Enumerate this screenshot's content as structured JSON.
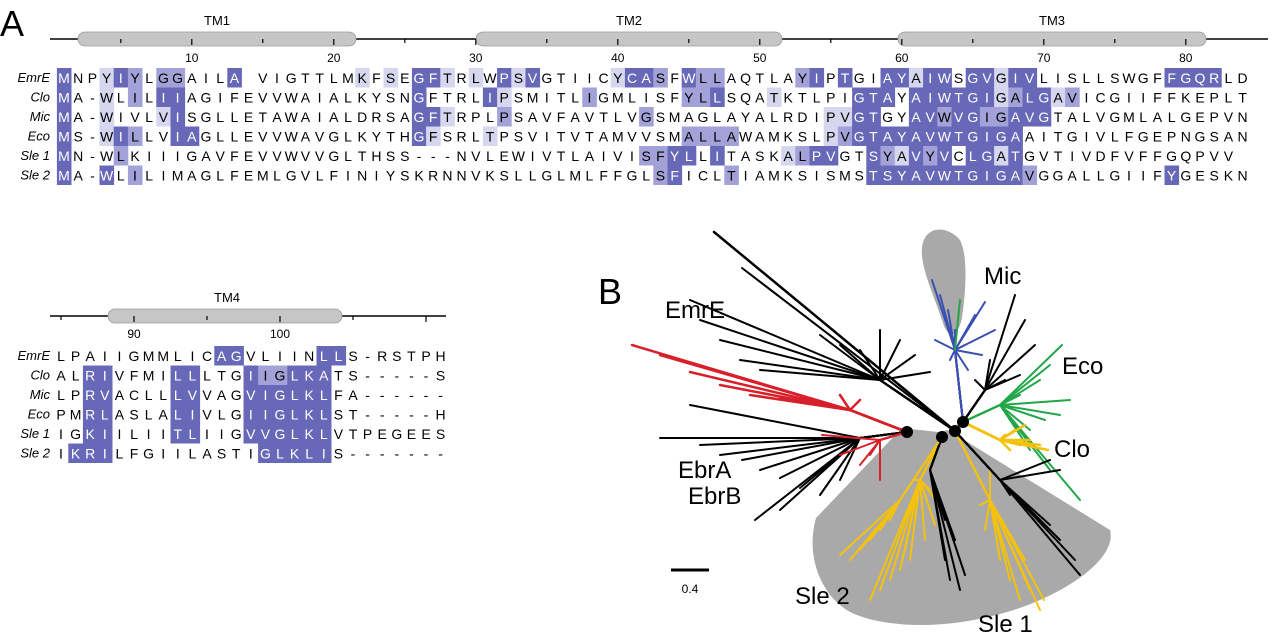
{
  "panel_a": {
    "label": "A",
    "block1": {
      "tm_labels": [
        "TM1",
        "TM2",
        "TM3"
      ],
      "ticks": [
        "10",
        "20",
        "30",
        "40",
        "50",
        "60",
        "70",
        "80"
      ],
      "rows": [
        {
          "name": "EmrE",
          "seq": "MNPYIYLGGAILAEVIGTTLMKFSEGFTRLWPSVGTIICYCASFWLLAQTLAYIPTGIAYAIWSGVGIVLISLLSWGFFGQRLD",
          "shade": "3001320220003400000001010331010313000001332032200000230300331330331330000000003333000"
        },
        {
          "name": "Clo",
          "seq": "MA-WLILIIAGIFEVVWAIALKYSNGFTRLIPSMITLIGMLISFYLLSQATKTLPIGTAYAIWTGIGALGAVICGIIFFKEPLT",
          "shade": "3001020330000000000000000300003100000200000022300010000033303333331233120000000000000"
        },
        {
          "name": "Mic",
          "seq": "MA-WIVLVISGLLETAWAIALDRSAGFTRPLPSAVFAVTLVGSMAGLAYALRDIPVGTGYAVWVGIGAVGTALVGMLALGEPVN",
          "shade": "3001000130000000000000000331000200000000020000000000001133003323322333000000000000000"
        },
        {
          "name": "Eco",
          "seq": "MS-WILLVIAGLLEVVWAVGLKYTHGFSRLTPSVITVTAMVVSMALLAWAMKSLPVGTAYAVWTGIGAAITGIVLFGEPNGSAN",
          "shade": "3001320033000000000000000310001000000000000022220000001233333333333300000000000000000"
        },
        {
          "name": "Sle 1",
          "seq": "MN-WLKIIIGAVFEVVWVVGLTHSS---NVLEWIVTLAIVISFYLLITASKALPVGTSYAVYVCLGATGVTIVDFVFFGQPVV",
          "shade": "3000200000000000000000000000000000000000022330300001233003213230331300000000000000"
        },
        {
          "name": "Sle 2",
          "seq": "MA-WLILIMAGLFEMLGVLFINIYSKRNNVKSLLGLMLFFGLSFICLTIAMKSISMSTSYAVWTGIGAVGGALLGIIFYGESKN",
          "shade": "3003020000000000000000000000000000000000002300020000000003333333333320000000003000000"
        }
      ],
      "highlight_col": 14
    },
    "block2": {
      "tm_labels": [
        "TM4"
      ],
      "ticks": [
        "90",
        "100"
      ],
      "rows": [
        {
          "name": "EmrE",
          "seq": "LPAIIGMMLICAGVLIINLLS-RSTPH",
          "shade": "000000000003300000330000000"
        },
        {
          "name": "Clo",
          "seq": "ALRIVFMILLLTGIIGLKATS-----S",
          "shade": "003300003300032233300000000"
        },
        {
          "name": "Mic",
          "seq": "LPRVACLLLVVAGVIGLKLFA------",
          "shade": "003300003300033333300000000"
        },
        {
          "name": "Eco",
          "seq": "PMRLASLALIVLGIIGLKLST-----H",
          "shade": "003300003300033333300000000"
        },
        {
          "name": "Sle 1",
          "seq": "IGKIILIITLIIGVVGLKLVTPEGEES",
          "shade": "003300003300033333300000000"
        },
        {
          "name": "Sle 2",
          "seq": "IKRILFGIILASTIGLKLIS-------",
          "shade": "033300000000003333300000000"
        }
      ]
    }
  },
  "panel_b": {
    "label": "B",
    "clades": [
      "EmrE",
      "Mic",
      "Eco",
      "Clo",
      "EbrA",
      "EbrB",
      "Sle 2",
      "Sle 1"
    ],
    "scale_label": "0.4",
    "colors": {
      "EmrE": "#d8202a",
      "Mic": "#3a4fb0",
      "Eco": "#22a64a",
      "Sle": "#f4c20d",
      "other": "#000000",
      "shading": "#a9a9a9"
    }
  },
  "shade_colors": [
    "#ffffff",
    "#d6d6ee",
    "#a2a2d8",
    "#6868b8"
  ],
  "highlight_color": "#b05e52"
}
